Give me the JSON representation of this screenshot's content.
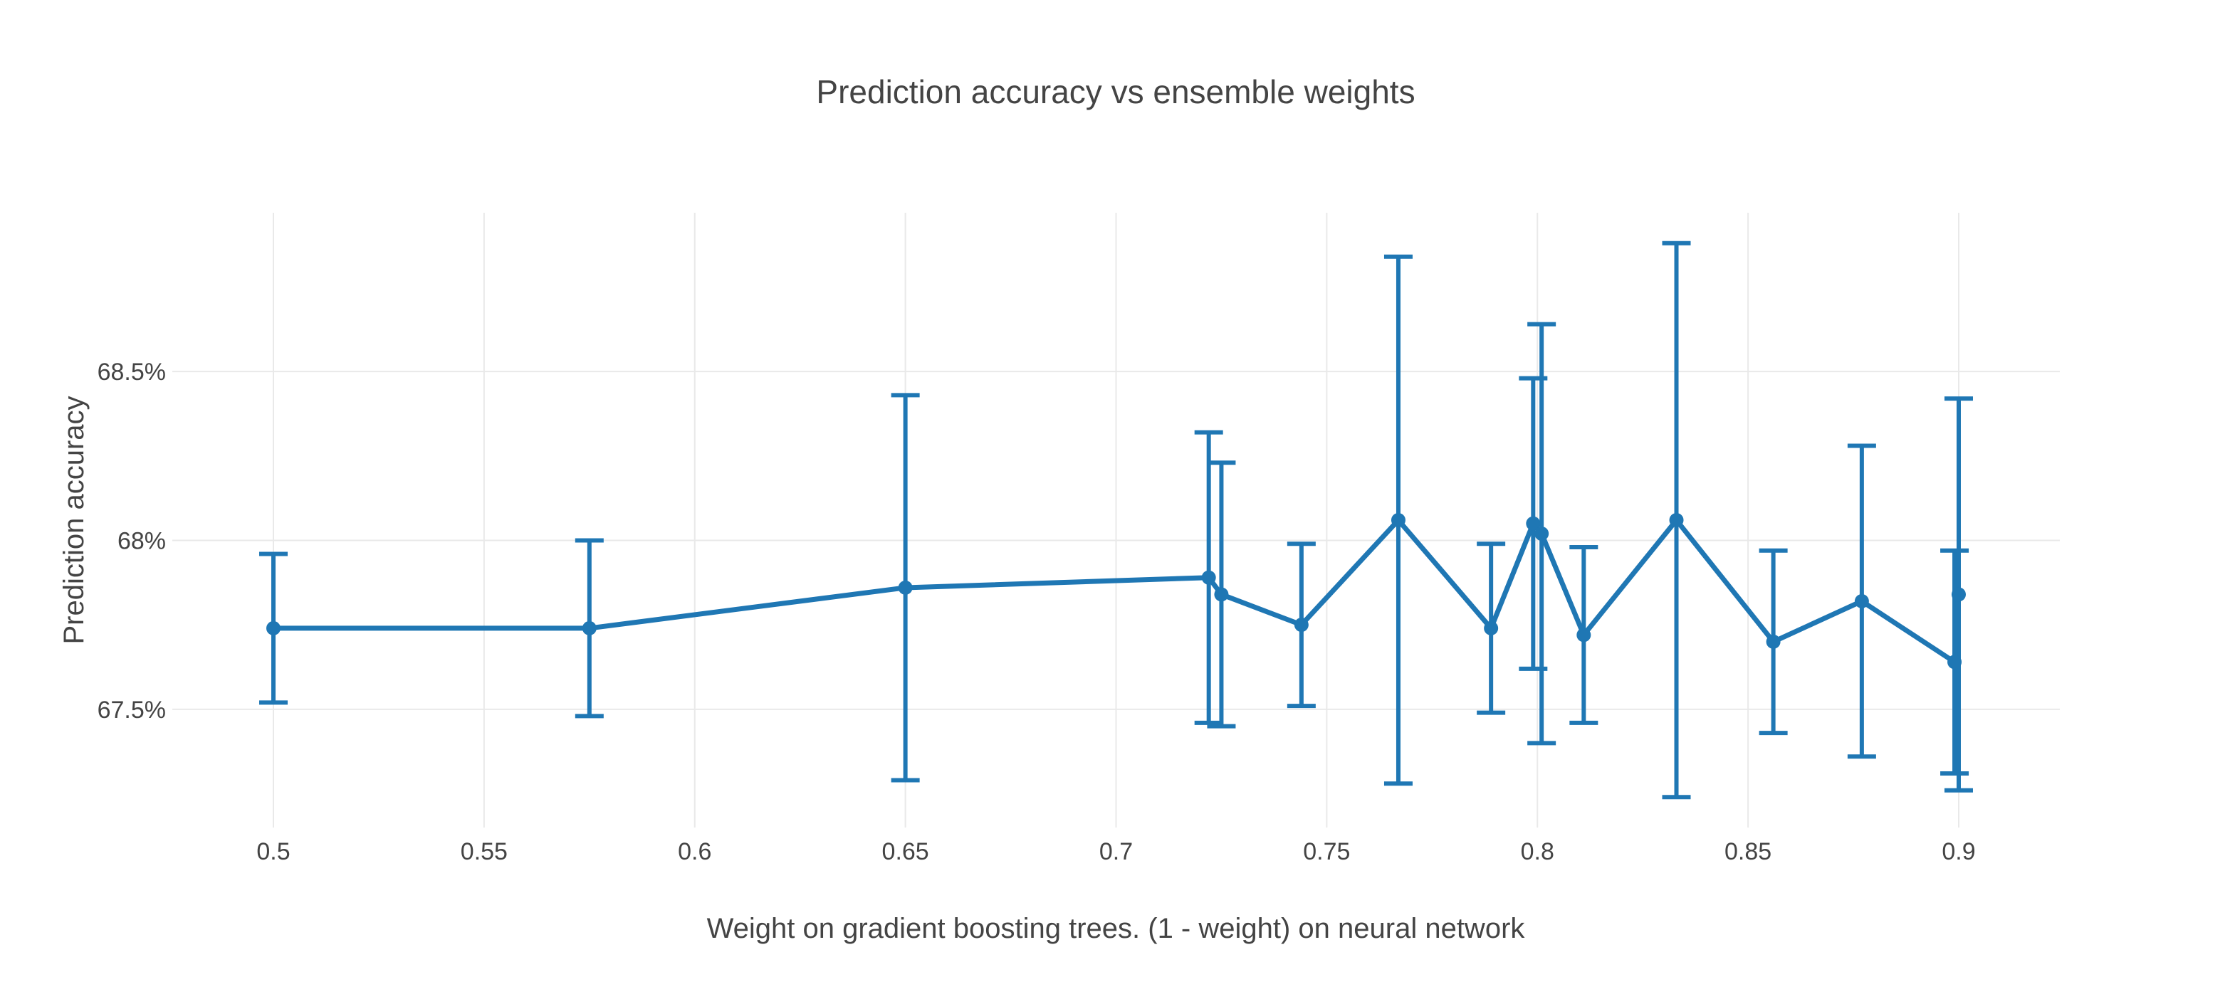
{
  "title": "Prediction accuracy vs ensemble weights",
  "x_axis": {
    "title": "Weight on gradient boosting trees. (1 - weight) on neural network",
    "range": [
      0.476,
      0.924
    ],
    "ticks": [
      {
        "v": 0.5,
        "label": "0.5"
      },
      {
        "v": 0.55,
        "label": "0.55"
      },
      {
        "v": 0.6,
        "label": "0.6"
      },
      {
        "v": 0.65,
        "label": "0.65"
      },
      {
        "v": 0.7,
        "label": "0.7"
      },
      {
        "v": 0.75,
        "label": "0.75"
      },
      {
        "v": 0.8,
        "label": "0.8"
      },
      {
        "v": 0.85,
        "label": "0.85"
      },
      {
        "v": 0.9,
        "label": "0.9"
      }
    ]
  },
  "y_axis": {
    "title": "Prediction accuracy",
    "range": [
      67.15,
      68.97
    ],
    "ticks": [
      {
        "v": 67.5,
        "label": "67.5%"
      },
      {
        "v": 68,
        "label": "68%"
      },
      {
        "v": 68.5,
        "label": "68.5%"
      }
    ]
  },
  "colors": {
    "series": "#1f77b4",
    "grid": "#e9e9e9",
    "text": "#444444",
    "background": "#ffffff"
  },
  "chart_data": {
    "type": "line",
    "title": "Prediction accuracy vs ensemble weights",
    "xlabel": "Weight on gradient boosting trees. (1 - weight) on neural network",
    "ylabel": "Prediction accuracy",
    "x_range": [
      0.476,
      0.924
    ],
    "y_range": [
      67.15,
      68.97
    ],
    "y_unit": "percent",
    "grid": true,
    "legend": false,
    "error_bars": true,
    "series": [
      {
        "name": "Prediction accuracy",
        "color": "#1f77b4",
        "points": [
          {
            "x": 0.5,
            "y": 67.74,
            "err": 0.22
          },
          {
            "x": 0.575,
            "y": 67.74,
            "err": 0.26
          },
          {
            "x": 0.65,
            "y": 67.86,
            "err": 0.57
          },
          {
            "x": 0.722,
            "y": 67.89,
            "err": 0.43
          },
          {
            "x": 0.725,
            "y": 67.84,
            "err": 0.39
          },
          {
            "x": 0.744,
            "y": 67.75,
            "err": 0.24
          },
          {
            "x": 0.767,
            "y": 68.06,
            "err": 0.78
          },
          {
            "x": 0.789,
            "y": 67.74,
            "err": 0.25
          },
          {
            "x": 0.799,
            "y": 68.05,
            "err": 0.43
          },
          {
            "x": 0.801,
            "y": 68.02,
            "err": 0.62
          },
          {
            "x": 0.811,
            "y": 67.72,
            "err": 0.26
          },
          {
            "x": 0.833,
            "y": 68.06,
            "err": 0.82
          },
          {
            "x": 0.856,
            "y": 67.7,
            "err": 0.27
          },
          {
            "x": 0.877,
            "y": 67.82,
            "err": 0.46
          },
          {
            "x": 0.899,
            "y": 67.64,
            "err": 0.33
          },
          {
            "x": 0.9,
            "y": 67.84,
            "err": 0.58
          }
        ]
      }
    ]
  }
}
